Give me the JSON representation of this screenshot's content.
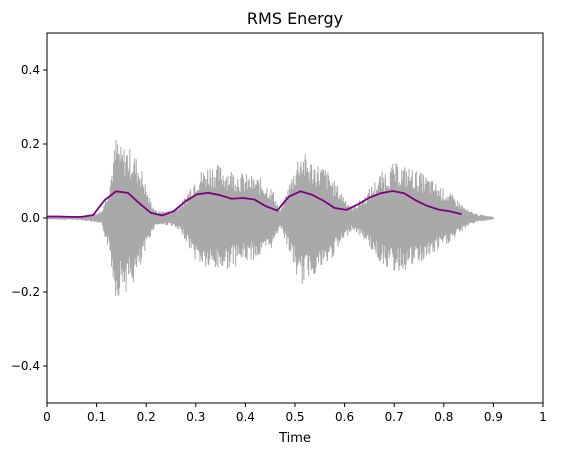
{
  "chart_data": {
    "type": "line",
    "title": "RMS Energy",
    "xlabel": "Time",
    "ylabel": "",
    "xlim": [
      0,
      1
    ],
    "ylim": [
      -0.5,
      0.5
    ],
    "x_ticks": [
      "0",
      "0.1",
      "0.2",
      "0.3",
      "0.4",
      "0.5",
      "0.6",
      "0.7",
      "0.8",
      "0.9",
      "1"
    ],
    "y_ticks": [
      "−0.4",
      "−0.2",
      "0.0",
      "0.2",
      "0.4"
    ],
    "grid": false,
    "colors": {
      "waveform": "#a9a9a9",
      "rms": "#800080"
    },
    "waveform": {
      "duration": 0.9,
      "envelope": [
        [
          0.0,
          0.004
        ],
        [
          0.06,
          0.005
        ],
        [
          0.09,
          0.01
        ],
        [
          0.11,
          0.02
        ],
        [
          0.125,
          0.09
        ],
        [
          0.14,
          0.23
        ],
        [
          0.15,
          0.19
        ],
        [
          0.16,
          0.2
        ],
        [
          0.175,
          0.18
        ],
        [
          0.19,
          0.14
        ],
        [
          0.205,
          0.06
        ],
        [
          0.22,
          0.02
        ],
        [
          0.25,
          0.02
        ],
        [
          0.275,
          0.05
        ],
        [
          0.3,
          0.12
        ],
        [
          0.33,
          0.15
        ],
        [
          0.36,
          0.14
        ],
        [
          0.38,
          0.13
        ],
        [
          0.4,
          0.12
        ],
        [
          0.43,
          0.11
        ],
        [
          0.455,
          0.08
        ],
        [
          0.47,
          0.02
        ],
        [
          0.49,
          0.1
        ],
        [
          0.51,
          0.19
        ],
        [
          0.53,
          0.16
        ],
        [
          0.56,
          0.14
        ],
        [
          0.59,
          0.08
        ],
        [
          0.615,
          0.03
        ],
        [
          0.64,
          0.06
        ],
        [
          0.67,
          0.12
        ],
        [
          0.7,
          0.15
        ],
        [
          0.73,
          0.14
        ],
        [
          0.76,
          0.12
        ],
        [
          0.79,
          0.09
        ],
        [
          0.82,
          0.06
        ],
        [
          0.85,
          0.02
        ],
        [
          0.87,
          0.01
        ],
        [
          0.9,
          0.004
        ]
      ]
    },
    "series": [
      {
        "x": [
          0.0,
          0.023,
          0.046,
          0.07,
          0.093,
          0.116,
          0.139,
          0.163,
          0.186,
          0.209,
          0.232,
          0.255,
          0.279,
          0.302,
          0.325,
          0.348,
          0.372,
          0.395,
          0.418,
          0.441,
          0.464,
          0.488,
          0.511,
          0.534,
          0.557,
          0.58,
          0.604,
          0.627,
          0.65,
          0.673,
          0.697,
          0.72,
          0.743,
          0.766,
          0.789,
          0.813,
          0.836
        ],
        "values": [
          0.004,
          0.004,
          0.003,
          0.003,
          0.008,
          0.048,
          0.072,
          0.068,
          0.04,
          0.014,
          0.007,
          0.018,
          0.045,
          0.064,
          0.068,
          0.062,
          0.052,
          0.054,
          0.05,
          0.032,
          0.02,
          0.058,
          0.072,
          0.063,
          0.047,
          0.027,
          0.022,
          0.037,
          0.055,
          0.067,
          0.073,
          0.067,
          0.048,
          0.033,
          0.023,
          0.018,
          0.01
        ]
      }
    ]
  }
}
